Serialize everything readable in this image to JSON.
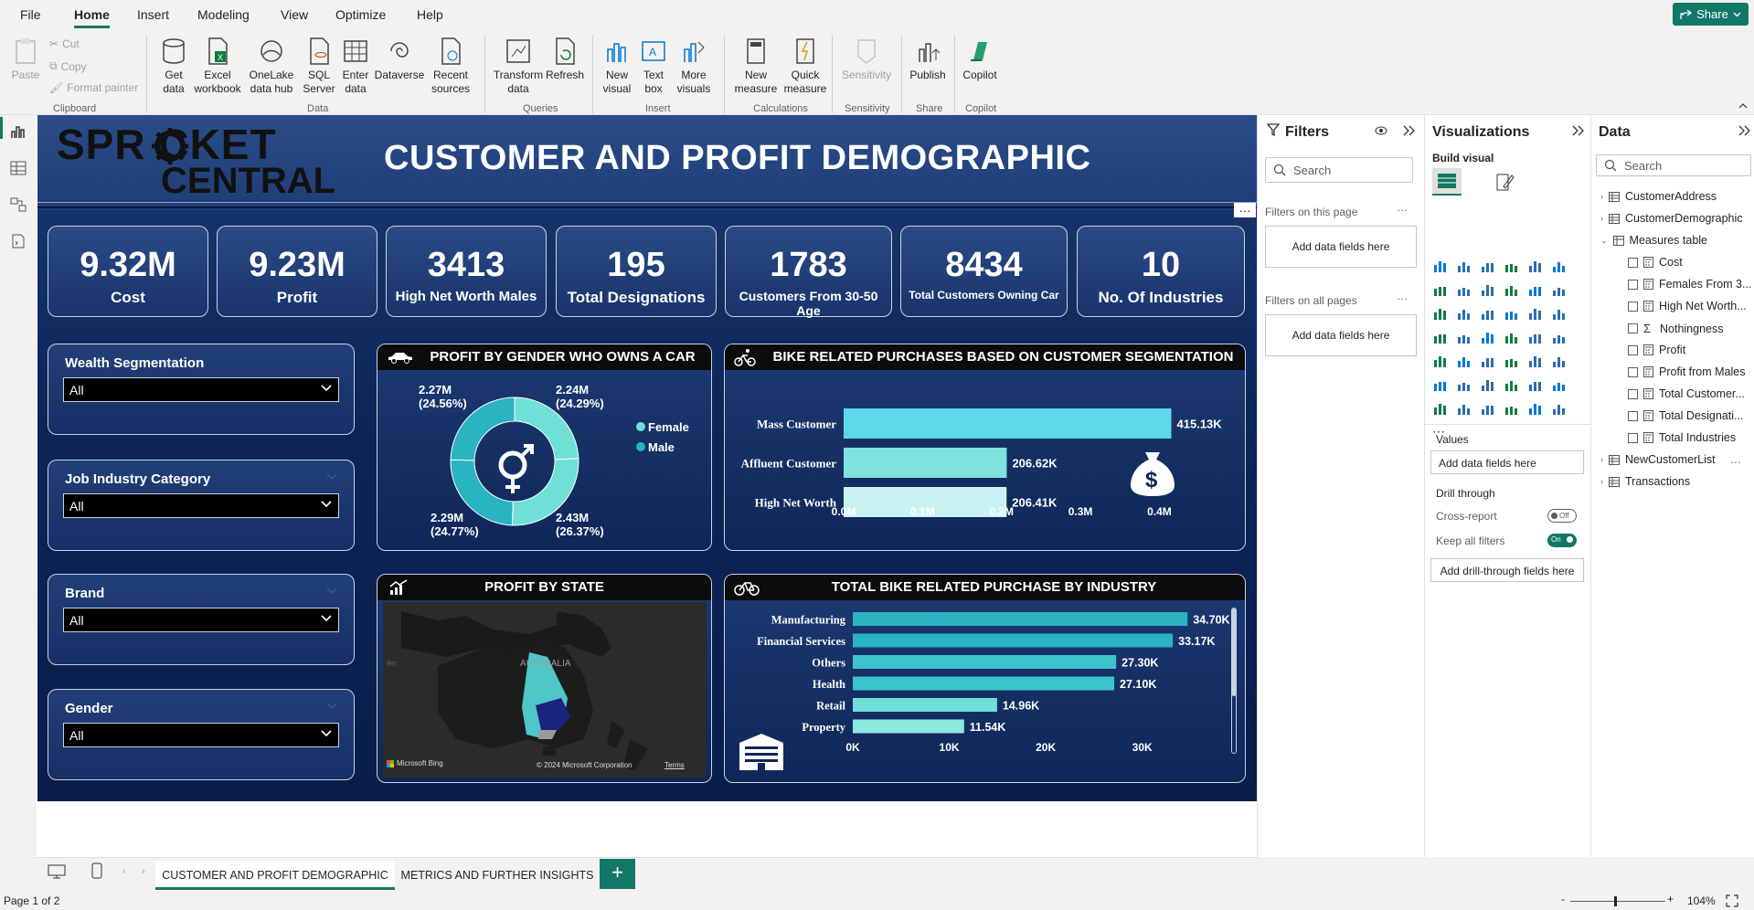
{
  "menu": {
    "items": [
      "File",
      "Home",
      "Insert",
      "Modeling",
      "View",
      "Optimize",
      "Help"
    ],
    "share": "Share"
  },
  "ribbon": {
    "clipboard": {
      "paste": "Paste",
      "cut": "Cut",
      "copy": "Copy",
      "format_painter": "Format painter",
      "group": "Clipboard"
    },
    "data": {
      "get_data": "Get data",
      "excel": "Excel workbook",
      "onelake": "OneLake data hub",
      "sql": "SQL Server",
      "enter": "Enter data",
      "dataverse": "Dataverse",
      "recent": "Recent sources",
      "group": "Data"
    },
    "queries": {
      "transform": "Transform data",
      "refresh": "Refresh",
      "group": "Queries"
    },
    "insert": {
      "new_visual": "New visual",
      "text_box": "Text box",
      "more_visuals": "More visuals",
      "group": "Insert"
    },
    "calculations": {
      "new_measure": "New measure",
      "quick_measure": "Quick measure",
      "group": "Calculations"
    },
    "sensitivity": {
      "label": "Sensitivity",
      "group": "Sensitivity"
    },
    "share": {
      "publish": "Publish",
      "group": "Share"
    },
    "copilot": {
      "label": "Copilot",
      "group": "Copilot"
    }
  },
  "report": {
    "logo_line1": "SPR CKET",
    "logo_line2": "CENTRAL",
    "title": "CUSTOMER AND PROFIT DEMOGRAPHIC",
    "kpis": [
      {
        "value": "9.32M",
        "label": "Cost"
      },
      {
        "value": "9.23M",
        "label": "Profit"
      },
      {
        "value": "3413",
        "label": "High Net Worth Males"
      },
      {
        "value": "195",
        "label": "Total Designations"
      },
      {
        "value": "1783",
        "label": "Customers From 30-50 Age"
      },
      {
        "value": "8434",
        "label": "Total Customers Owning Car"
      },
      {
        "value": "10",
        "label": "No. Of Industries"
      }
    ],
    "slicers": [
      {
        "title": "Wealth Segmentation",
        "value": "All"
      },
      {
        "title": "Job Industry Category",
        "value": "All"
      },
      {
        "title": "Brand",
        "value": "All"
      },
      {
        "title": "Gender",
        "value": "All"
      }
    ],
    "donut_title": "PROFIT BY GENDER WHO OWNS A CAR",
    "bike_title": "BIKE RELATED PURCHASES BASED ON CUSTOMER SEGMENTATION",
    "map_title": "PROFIT BY STATE",
    "map_label": "AUSTRALIA",
    "map_credit": "Microsoft Bing",
    "map_copyright": "© 2024 Microsoft Corporation",
    "map_terms": "Terms",
    "industry_title": "TOTAL BIKE RELATED PURCHASE BY INDUSTRY"
  },
  "chart_data": [
    {
      "type": "pie",
      "title": "PROFIT BY GENDER WHO OWNS A CAR",
      "slices": [
        {
          "label": "Female",
          "value": 2.24,
          "display": "2.24M",
          "pct": "(24.29%)",
          "color": "#6fe0d6"
        },
        {
          "label": "Female",
          "value": 2.43,
          "display": "2.43M",
          "pct": "(26.37%)",
          "color": "#6fe0d6"
        },
        {
          "label": "Male",
          "value": 2.29,
          "display": "2.29M",
          "pct": "(24.77%)",
          "color": "#2ab3c0"
        },
        {
          "label": "Male",
          "value": 2.27,
          "display": "2.27M",
          "pct": "(24.56%)",
          "color": "#2ab3c0"
        }
      ],
      "legend": [
        "Female",
        "Male"
      ]
    },
    {
      "type": "bar",
      "title": "BIKE RELATED PURCHASES BASED ON CUSTOMER SEGMENTATION",
      "categories": [
        "Mass Customer",
        "Affluent Customer",
        "High Net Worth"
      ],
      "values": [
        415.13,
        206.62,
        206.41
      ],
      "labels": [
        "415.13K",
        "206.62K",
        "206.41K"
      ],
      "xticks": [
        "0.0M",
        "0.1M",
        "0.2M",
        "0.3M",
        "0.4M"
      ],
      "xlim": [
        0,
        440
      ],
      "colors": [
        "#5ed9ea",
        "#7ee3dc",
        "#c9f2f2"
      ]
    },
    {
      "type": "bar",
      "title": "TOTAL BIKE RELATED PURCHASE BY INDUSTRY",
      "categories": [
        "Manufacturing",
        "Financial Services",
        "Others",
        "Health",
        "Retail",
        "Property"
      ],
      "values": [
        34.7,
        33.17,
        27.3,
        27.1,
        14.96,
        11.54
      ],
      "labels": [
        "34.70K",
        "33.17K",
        "27.30K",
        "27.10K",
        "14.96K",
        "11.54K"
      ],
      "xticks": [
        "0K",
        "10K",
        "20K",
        "30K"
      ],
      "xlim": [
        0,
        36
      ],
      "colors": [
        "#2ab3c0",
        "#2ab3c0",
        "#3cc4cc",
        "#3cc4cc",
        "#6fe0d6",
        "#8ae8de"
      ]
    }
  ],
  "filters": {
    "title": "Filters",
    "search": "Search",
    "on_page": "Filters on this page",
    "on_all": "Filters on all pages",
    "add": "Add data fields here"
  },
  "viz": {
    "title": "Visualizations",
    "build": "Build visual",
    "values": "Values",
    "add": "Add data fields here",
    "drill": "Drill through",
    "cross": "Cross-report",
    "cross_state": "Off",
    "keep": "Keep all filters",
    "keep_state": "On",
    "add_drill": "Add drill-through fields here"
  },
  "data_pane": {
    "title": "Data",
    "search": "Search",
    "tables": [
      "CustomerAddress",
      "CustomerDemographic"
    ],
    "measures_table": "Measures table",
    "measures": [
      "Cost",
      "Females From 3...",
      "High Net Worth...",
      "Nothingness",
      "Profit",
      "Profit from Males",
      "Total Customer...",
      "Total Designati...",
      "Total Industries"
    ],
    "tables2": [
      "NewCustomerList",
      "Transactions"
    ]
  },
  "tabs": {
    "tab1": "CUSTOMER AND PROFIT DEMOGRAPHIC",
    "tab2": "METRICS AND FURTHER INSIGHTS",
    "add": "+"
  },
  "status": {
    "page": "Page 1 of 2",
    "zoom": "104%",
    "minus": "-",
    "plus": "+"
  }
}
